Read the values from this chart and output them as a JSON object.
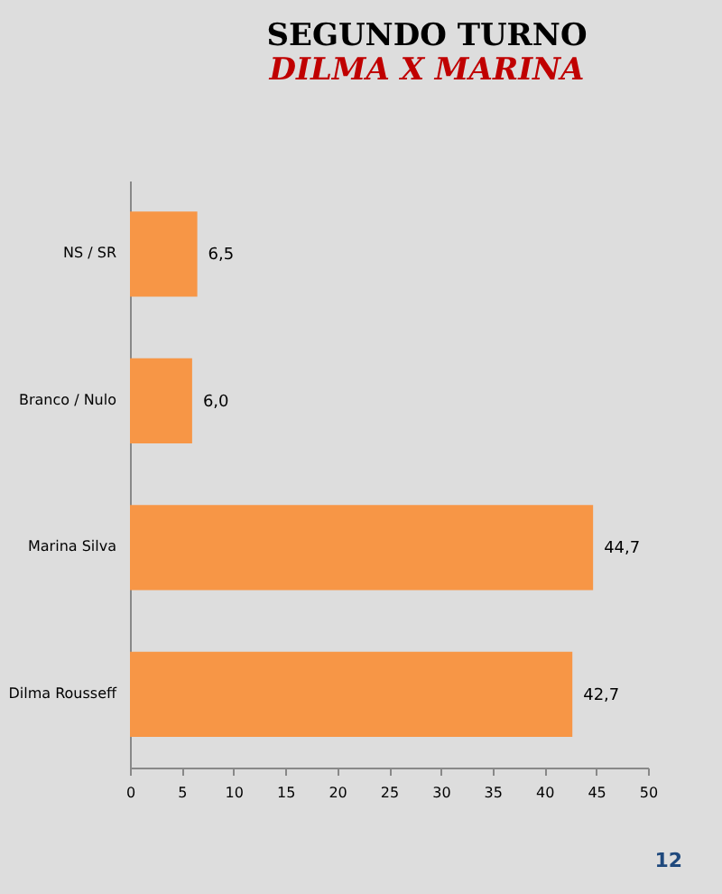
{
  "chart_data": {
    "type": "bar",
    "orientation": "horizontal",
    "title": "SEGUNDO TURNO",
    "subtitle": "DILMA X MARINA",
    "categories": [
      "NS / SR",
      "Branco / Nulo",
      "Marina Silva",
      "Dilma Rousseff"
    ],
    "values": [
      6.5,
      6.0,
      44.7,
      42.7
    ],
    "value_labels": [
      "6,5",
      "6,0",
      "44,7",
      "42,7"
    ],
    "color": "#f79646",
    "xlim": [
      0,
      50
    ],
    "xticks": [
      0,
      5,
      10,
      15,
      20,
      25,
      30,
      35,
      40,
      45,
      50
    ],
    "annotations": [
      "12"
    ]
  }
}
